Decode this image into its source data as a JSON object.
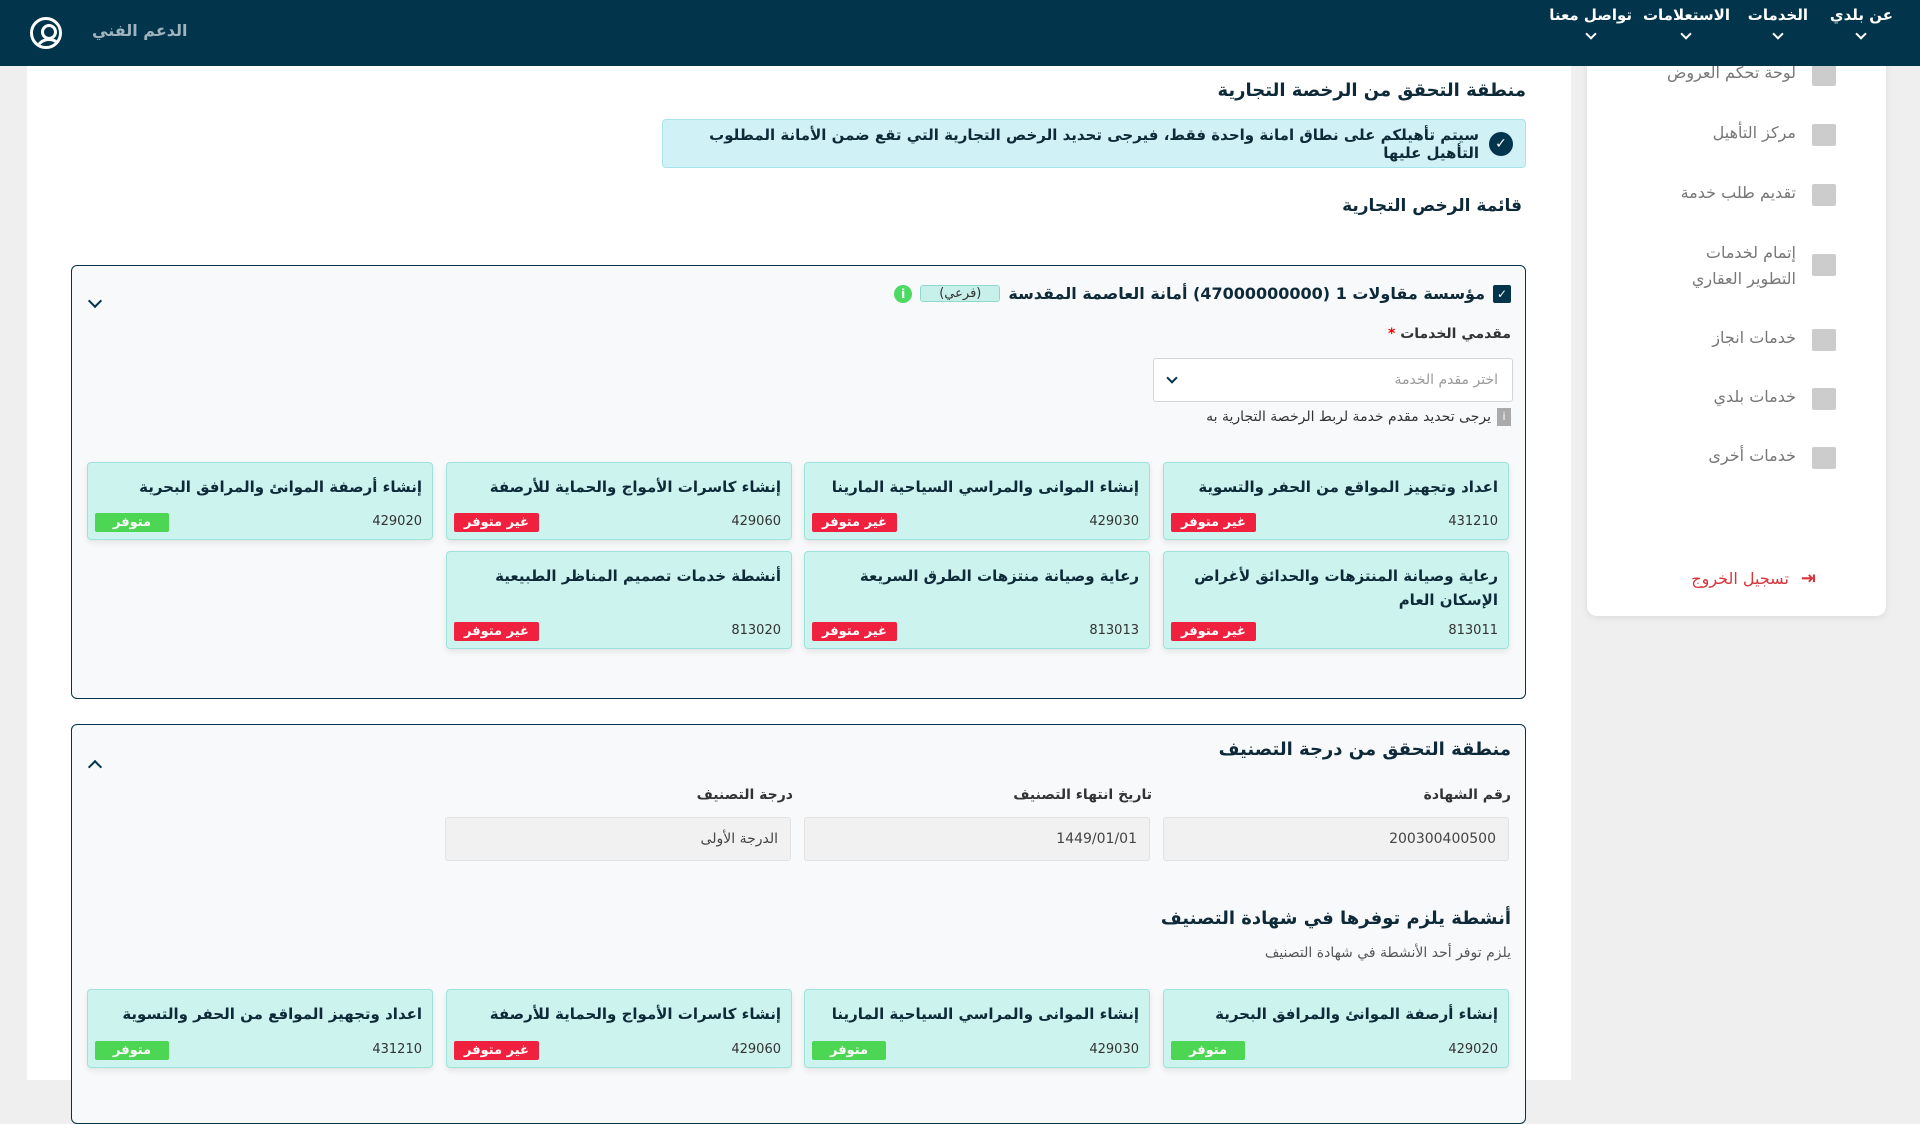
{
  "header": {
    "nav": [
      {
        "label": "عن بلدي"
      },
      {
        "label": "الخدمات"
      },
      {
        "label": "الاستعلامات"
      },
      {
        "label": "تواصل معنا"
      }
    ],
    "support_label": "الدعم الفني",
    "user_icon": "user-circle-icon",
    "background": "#02344b"
  },
  "sidebar": {
    "items": [
      {
        "label": "لوحة تحكم العروض"
      },
      {
        "label": "مركز التأهيل"
      },
      {
        "label": "تقديم طلب خدمة"
      },
      {
        "label": "إتمام لخدمات التطوير العقاري"
      },
      {
        "label": "خدمات انجاز"
      },
      {
        "label": "خدمات بلدي"
      },
      {
        "label": "خدمات أخرى"
      }
    ],
    "logout_label": "تسجيل الخروج"
  },
  "license_section": {
    "title": "منطقة التحقق من الرخصة التجارية",
    "alert": "سيتم تأهيلكم على نطاق امانة واحدة فقط، فيرجى تحديد الرخص التجارية التي تقع ضمن الأمانة المطلوب التأهيل عليها",
    "list_title": "قائمة الرخص التجارية",
    "license": {
      "checkbox": "✓",
      "name": "مؤسسة مقاولات 1 (47000000000) أمانة العاصمة المقدسة",
      "tag": "(فرعي)",
      "providers_label": "مقدمي الخدمات",
      "required_mark": "*",
      "provider_placeholder": "اختر مقدم الخدمة",
      "hint": "يرجى تحديد مقدم خدمة لربط الرخصة التجارية به",
      "activities": [
        {
          "title": "اعداد وتجهيز المواقع من الحفر والتسوية",
          "code": "431210",
          "status": "غير متوفر",
          "available": false
        },
        {
          "title": "إنشاء الموانى والمراسي السياحية المارينا",
          "code": "429030",
          "status": "غير متوفر",
          "available": false
        },
        {
          "title": "إنشاء كاسرات الأمواج والحماية للأرصفة",
          "code": "429060",
          "status": "غير متوفر",
          "available": false
        },
        {
          "title": "إنشاء أرصفة الموانئ والمرافق البحرية",
          "code": "429020",
          "status": "متوفر",
          "available": true
        },
        {
          "title": "رعاية وصيانة المنتزهات والحدائق لأغراض الإسكان العام",
          "code": "813011",
          "status": "غير متوفر",
          "available": false
        },
        {
          "title": "رعاية وصيانة منتزهات الطرق السريعة",
          "code": "813013",
          "status": "غير متوفر",
          "available": false
        },
        {
          "title": "أنشطة خدمات تصميم المناظر الطبيعية",
          "code": "813020",
          "status": "غير متوفر",
          "available": false
        }
      ]
    }
  },
  "classification_section": {
    "title": "منطقة التحقق من درجة التصنيف",
    "fields": [
      {
        "label": "رقم الشهادة",
        "value": "200300400500"
      },
      {
        "label": "تاريخ انتهاء التصنيف",
        "value": "1449/01/01"
      },
      {
        "label": "درجة التصنيف",
        "value": "الدرجة الأولى"
      }
    ],
    "activities_title": "أنشطة يلزم توفرها في شهادة التصنيف",
    "activities_subtitle": "يلزم توفر أحد الأنشطة في شهادة التصنيف",
    "activities": [
      {
        "title": "إنشاء أرصفة الموانئ والمرافق البحرية",
        "code": "429020",
        "status": "متوفر",
        "available": true
      },
      {
        "title": "إنشاء الموانى والمراسي السياحية المارينا",
        "code": "429030",
        "status": "متوفر",
        "available": true
      },
      {
        "title": "إنشاء كاسرات الأمواج والحماية للأرصفة",
        "code": "429060",
        "status": "غير متوفر",
        "available": false
      },
      {
        "title": "اعداد وتجهيز المواقع من الحفر والتسوية",
        "code": "431210",
        "status": "متوفر",
        "available": true
      }
    ]
  },
  "colors": {
    "available": "#4cd653",
    "unavailable": "#f0213f",
    "card_bg": "#ccf3ee"
  }
}
